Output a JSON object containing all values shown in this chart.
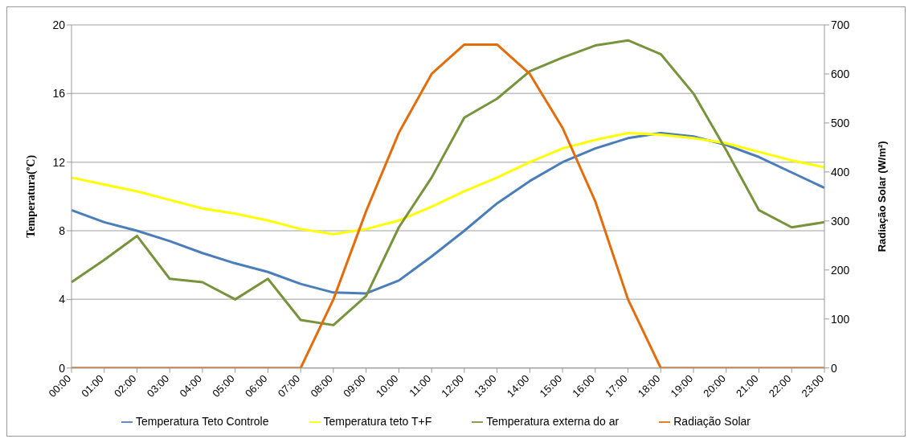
{
  "chart_data": {
    "type": "line",
    "ylabel": "Temperatura(ºC)",
    "y2label": "Radiação Solar (W/m²)",
    "categories": [
      "00:00",
      "01:00",
      "02:00",
      "03:00",
      "04:00",
      "05:00",
      "06:00",
      "07:00",
      "08:00",
      "09:00",
      "10:00",
      "11:00",
      "12:00",
      "13:00",
      "14:00",
      "15:00",
      "16:00",
      "17:00",
      "18:00",
      "19:00",
      "20:00",
      "21:00",
      "22:00",
      "23:00"
    ],
    "series": [
      {
        "name": "Temperatura Teto Controle",
        "color": "#4a7ebb",
        "values": [
          9.2,
          8.5,
          8.0,
          7.4,
          6.7,
          6.1,
          5.6,
          4.9,
          4.4,
          4.35,
          5.1,
          6.5,
          8.0,
          9.6,
          10.9,
          12.0,
          12.8,
          13.4,
          13.7,
          13.5,
          13.0,
          12.3,
          11.4,
          10.5
        ]
      },
      {
        "name": "Temperatura teto T+F",
        "color": "#ffff00",
        "values": [
          11.1,
          10.7,
          10.3,
          9.8,
          9.3,
          9.0,
          8.6,
          8.1,
          7.8,
          8.1,
          8.6,
          9.4,
          10.3,
          11.1,
          12.0,
          12.8,
          13.3,
          13.7,
          13.6,
          13.4,
          13.1,
          12.6,
          12.1,
          11.7
        ]
      },
      {
        "name": "Temperatura externa do ar",
        "color": "#77933c",
        "values": [
          5.0,
          6.3,
          7.7,
          5.2,
          5.0,
          4.0,
          5.2,
          2.8,
          2.5,
          4.2,
          8.2,
          11.1,
          14.6,
          15.7,
          17.3,
          18.1,
          18.8,
          19.1,
          18.3,
          16.0,
          12.7,
          9.2,
          8.2,
          8.5
        ]
      },
      {
        "name": "Radiação Solar",
        "color": "#e46c0a",
        "axis": "y2",
        "values": [
          0,
          0,
          0,
          0,
          0,
          0,
          0,
          0,
          140,
          320,
          480,
          600,
          660,
          660,
          600,
          490,
          340,
          140,
          0,
          0,
          0,
          0,
          0,
          0
        ]
      }
    ],
    "ylim": [
      0,
      20
    ],
    "yticks": [
      0,
      4,
      8,
      12,
      16,
      20
    ],
    "y2lim": [
      0,
      700
    ],
    "y2ticks": [
      0,
      100,
      200,
      300,
      400,
      500,
      600,
      700
    ],
    "grid": "y",
    "legend": "bottom",
    "marker": "none",
    "line_style": "solid"
  }
}
